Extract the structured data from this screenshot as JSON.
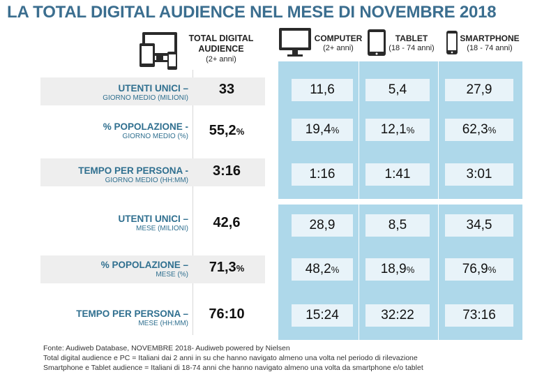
{
  "title": "LA TOTAL DIGITAL AUDIENCE NEL MESE DI NOVEMBRE 2018",
  "headers": {
    "total": {
      "line1": "TOTAL DIGITAL",
      "line2": "AUDIENCE",
      "line3": "(2+ anni)"
    },
    "computer": {
      "line1": "COMPUTER",
      "line2": "(2+ anni)"
    },
    "tablet": {
      "line1": "TABLET",
      "line2": "(18 - 74 anni)"
    },
    "smartphone": {
      "line1": "SMARTPHONE",
      "line2": "(18 - 74 anni)"
    }
  },
  "rows": [
    {
      "label": "UTENTI UNICI –",
      "sublabel": "GIORNO MEDIO (MILIONI)",
      "total": "33",
      "total_pct": "",
      "computer": "11,6",
      "tablet": "5,4",
      "smartphone": "27,9",
      "c_pct": "",
      "t_pct": "",
      "s_pct": ""
    },
    {
      "label": "% POPOLAZIONE -",
      "sublabel": "GIORNO MEDIO (%)",
      "total": "55,2",
      "total_pct": "%",
      "computer": "19,4",
      "tablet": "12,1",
      "smartphone": "62,3",
      "c_pct": "%",
      "t_pct": "%",
      "s_pct": "%"
    },
    {
      "label": "TEMPO PER PERSONA -",
      "sublabel": "GIORNO MEDIO (HH:MM)",
      "total": "3:16",
      "total_pct": "",
      "computer": "1:16",
      "tablet": "1:41",
      "smartphone": "3:01",
      "c_pct": "",
      "t_pct": "",
      "s_pct": ""
    },
    {
      "label": "UTENTI UNICI –",
      "sublabel": "MESE (MILIONI)",
      "total": "42,6",
      "total_pct": "",
      "computer": "28,9",
      "tablet": "8,5",
      "smartphone": "34,5",
      "c_pct": "",
      "t_pct": "",
      "s_pct": ""
    },
    {
      "label": "% POPOLAZIONE –",
      "sublabel": "MESE (%)",
      "total": "71,3",
      "total_pct": "%",
      "computer": "48,2",
      "tablet": "18,9",
      "smartphone": "76,9",
      "c_pct": "%",
      "t_pct": "%",
      "s_pct": "%"
    },
    {
      "label": "TEMPO PER PERSONA –",
      "sublabel": "MESE (HH:MM)",
      "total": "76:10",
      "total_pct": "",
      "computer": "15:24",
      "tablet": "32:22",
      "smartphone": "73:16",
      "c_pct": "",
      "t_pct": "",
      "s_pct": ""
    }
  ],
  "footnotes": [
    "Fonte: Audiweb Database, NOVEMBRE 2018- Audiweb powered by Nielsen",
    "Total digital audience e PC = Italiani dai 2 anni in su che hanno navigato almeno una volta nel periodo di rilevazione",
    "Smartphone e Tablet audience = Italiani di 18-74 anni che hanno navigato almeno una volta da smartphone e/o tablet"
  ],
  "colors": {
    "title": "#3b6e8f",
    "label": "#2f6f8f",
    "panel": "#aed8ea",
    "cell": "#e8f3f9",
    "row_bg": "#eeeeee"
  },
  "icons": [
    "devices-icon",
    "monitor-icon",
    "tablet-icon",
    "smartphone-icon"
  ],
  "chart_data": {
    "type": "table",
    "title": "LA TOTAL DIGITAL AUDIENCE NEL MESE DI NOVEMBRE 2018",
    "columns": [
      "TOTAL DIGITAL AUDIENCE",
      "COMPUTER",
      "TABLET",
      "SMARTPHONE"
    ],
    "row_labels": [
      "UTENTI UNICI – GIORNO MEDIO (MILIONI)",
      "% POPOLAZIONE - GIORNO MEDIO (%)",
      "TEMPO PER PERSONA - GIORNO MEDIO (HH:MM)",
      "UTENTI UNICI – MESE (MILIONI)",
      "% POPOLAZIONE – MESE (%)",
      "TEMPO PER PERSONA – MESE (HH:MM)"
    ],
    "values": [
      [
        "33",
        "11,6",
        "5,4",
        "27,9"
      ],
      [
        "55,2%",
        "19,4%",
        "12,1%",
        "62,3%"
      ],
      [
        "3:16",
        "1:16",
        "1:41",
        "3:01"
      ],
      [
        "42,6",
        "28,9",
        "8,5",
        "34,5"
      ],
      [
        "71,3%",
        "48,2%",
        "18,9%",
        "76,9%"
      ],
      [
        "76:10",
        "15:24",
        "32:22",
        "73:16"
      ]
    ]
  }
}
